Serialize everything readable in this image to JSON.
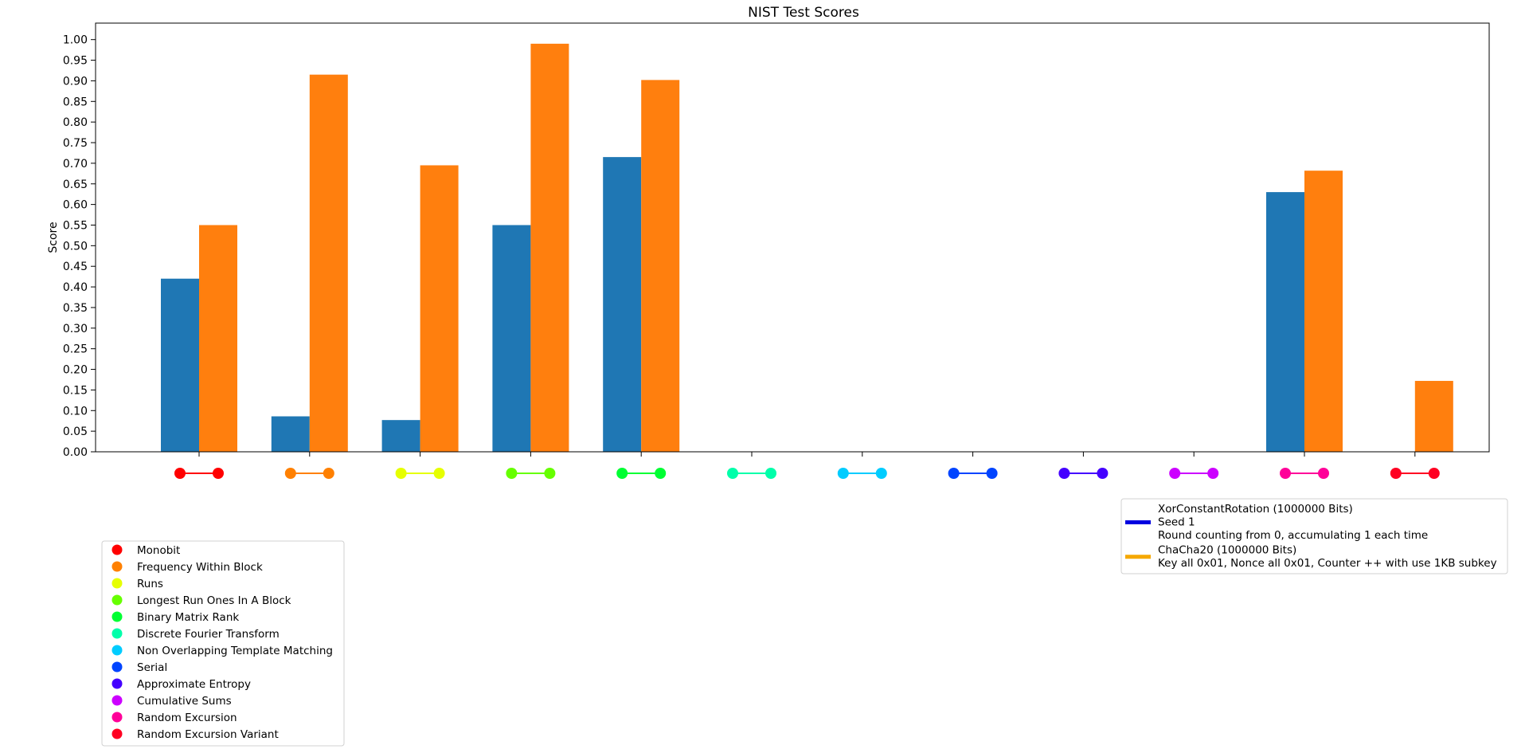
{
  "chart_data": {
    "type": "bar",
    "title": "NIST Test Scores",
    "xlabel": "",
    "ylabel": "Score",
    "ylim": [
      0,
      1.04
    ],
    "yticks": [
      0,
      0.05,
      0.1,
      0.15,
      0.2,
      0.25,
      0.3,
      0.35,
      0.4,
      0.45,
      0.5,
      0.55,
      0.6,
      0.65,
      0.7,
      0.75,
      0.8,
      0.85,
      0.9,
      0.95,
      1.0
    ],
    "grid": false,
    "categories": [
      "Monobit",
      "Frequency Within Block",
      "Runs",
      "Longest Run Ones In A Block",
      "Binary Matrix Rank",
      "Discrete Fourier Transform",
      "Non Overlapping Template Matching",
      "Serial",
      "Approximate Entropy",
      "Cumulative Sums",
      "Random Excursion",
      "Random Excursion Variant"
    ],
    "category_colors": [
      "#ff0000",
      "#ff8000",
      "#e6ff00",
      "#66ff00",
      "#00ff33",
      "#00ffaa",
      "#00ccff",
      "#0044ff",
      "#4400ff",
      "#cc00ff",
      "#ff0099",
      "#ff0022"
    ],
    "series": [
      {
        "name": "XorConstantRotation (1000000 Bits)",
        "legend_lines": [
          "XorConstantRotation (1000000 Bits)",
          "Seed 1",
          "Round counting from 0, accumulating 1 each time"
        ],
        "bar_color": "#1f77b4",
        "legend_color": "#0000e0",
        "values": [
          0.42,
          0.086,
          0.077,
          0.55,
          0.715,
          0,
          0,
          0,
          0,
          0,
          0.63,
          0
        ]
      },
      {
        "name": "ChaCha20 (1000000 Bits)",
        "legend_lines": [
          "ChaCha20 (1000000 Bits)",
          "Key all 0x01, Nonce all 0x01, Counter ++ with use 1KB subkey"
        ],
        "bar_color": "#ff7f0e",
        "legend_color": "#f5a800",
        "values": [
          0.55,
          0.915,
          0.695,
          0.99,
          0.902,
          0,
          0,
          0,
          0,
          0,
          0.682,
          0.172
        ]
      }
    ],
    "series_legend_placement": "right, below plot",
    "category_legend_placement": "left, below plot"
  }
}
